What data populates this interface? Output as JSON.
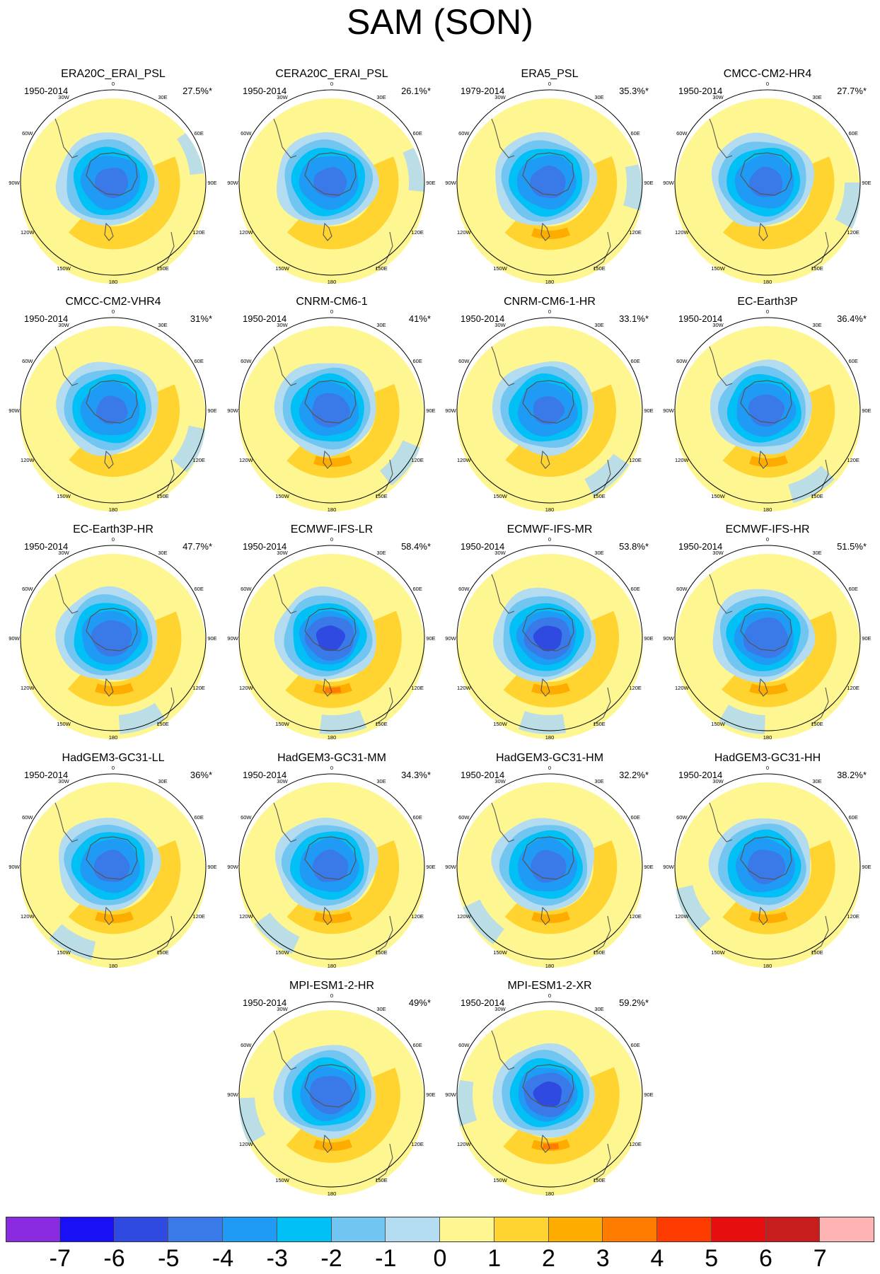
{
  "figure": {
    "title": "SAM (SON)"
  },
  "longitude_labels": [
    "0",
    "30E",
    "60E",
    "90E",
    "120E",
    "150E",
    "180",
    "150W",
    "120W",
    "90W",
    "60W",
    "30W"
  ],
  "panels": [
    {
      "name": "ERA20C_ERAI_PSL",
      "years": "1950-2014",
      "variance": "27.5%*"
    },
    {
      "name": "CERA20C_ERAI_PSL",
      "years": "1950-2014",
      "variance": "26.1%*"
    },
    {
      "name": "ERA5_PSL",
      "years": "1979-2014",
      "variance": "35.3%*"
    },
    {
      "name": "CMCC-CM2-HR4",
      "years": "1950-2014",
      "variance": "27.7%*"
    },
    {
      "name": "CMCC-CM2-VHR4",
      "years": "1950-2014",
      "variance": "31%*"
    },
    {
      "name": "CNRM-CM6-1",
      "years": "1950-2014",
      "variance": "41%*"
    },
    {
      "name": "CNRM-CM6-1-HR",
      "years": "1950-2014",
      "variance": "33.1%*"
    },
    {
      "name": "EC-Earth3P",
      "years": "1950-2014",
      "variance": "36.4%*"
    },
    {
      "name": "EC-Earth3P-HR",
      "years": "1950-2014",
      "variance": "47.7%*"
    },
    {
      "name": "ECMWF-IFS-LR",
      "years": "1950-2014",
      "variance": "58.4%*"
    },
    {
      "name": "ECMWF-IFS-MR",
      "years": "1950-2014",
      "variance": "53.8%*"
    },
    {
      "name": "ECMWF-IFS-HR",
      "years": "1950-2014",
      "variance": "51.5%*"
    },
    {
      "name": "HadGEM3-GC31-LL",
      "years": "1950-2014",
      "variance": "36%*"
    },
    {
      "name": "HadGEM3-GC31-MM",
      "years": "1950-2014",
      "variance": "34.3%*"
    },
    {
      "name": "HadGEM3-GC31-HM",
      "years": "1950-2014",
      "variance": "32.2%*"
    },
    {
      "name": "HadGEM3-GC31-HH",
      "years": "1950-2014",
      "variance": "38.2%*"
    },
    {
      "name": "MPI-ESM1-2-HR",
      "years": "1950-2014",
      "variance": "49%*"
    },
    {
      "name": "MPI-ESM1-2-XR",
      "years": "1950-2014",
      "variance": "59.2%*"
    }
  ],
  "colorbar": {
    "levels": [
      "-7",
      "-6",
      "-5",
      "-4",
      "-3",
      "-2",
      "-1",
      "0",
      "1",
      "2",
      "3",
      "4",
      "5",
      "6",
      "7"
    ],
    "colors": [
      "#8a2be2",
      "#1a10f5",
      "#2f4ae0",
      "#3a7ae8",
      "#1f9bf5",
      "#00c0f5",
      "#70c6f0",
      "#b4dcf0",
      "#fef690",
      "#ffd430",
      "#ffac00",
      "#ff7c00",
      "#ff3c00",
      "#e60e0e",
      "#c81d1d",
      "#ffb4b4"
    ],
    "colors_count_note_hidden": ""
  }
}
